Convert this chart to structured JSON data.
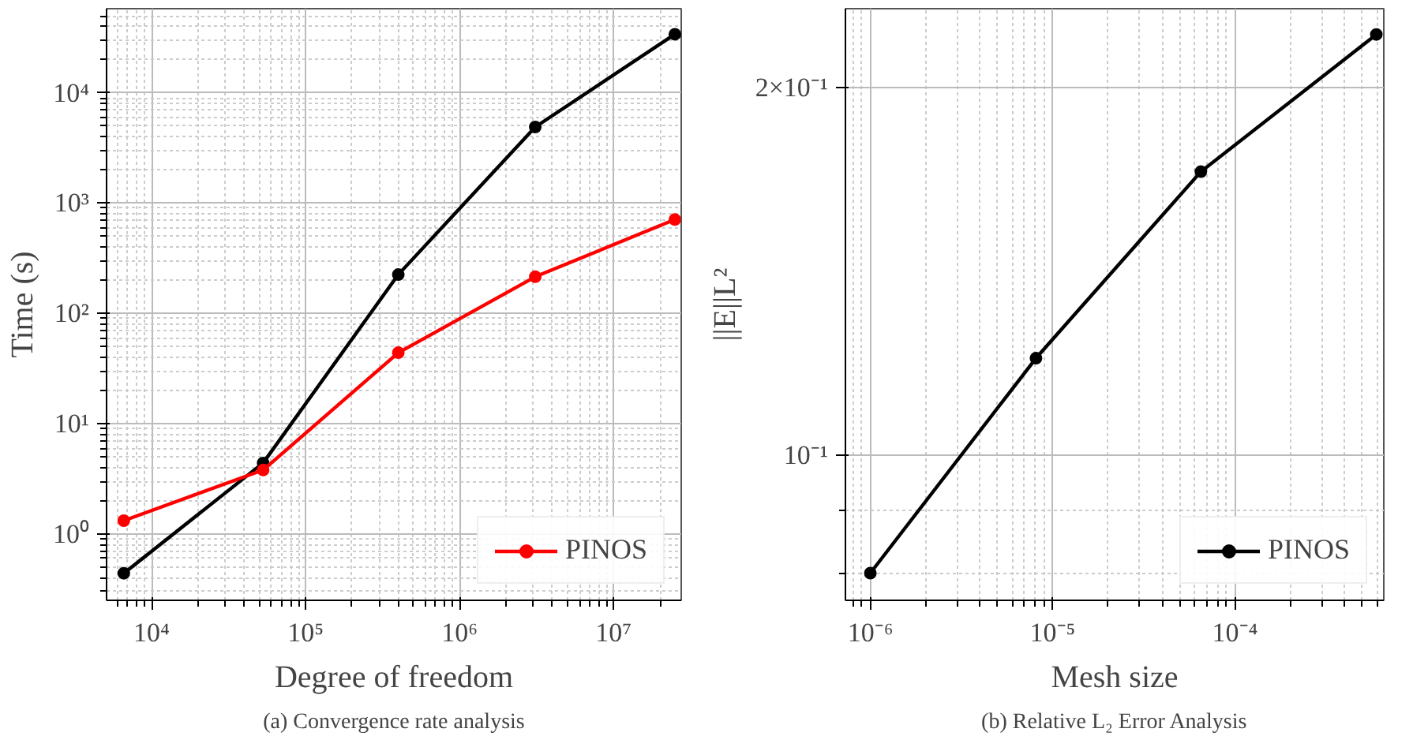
{
  "chart_data": [
    {
      "type": "line",
      "title": "(a) Convergence rate analysis",
      "xlabel": "Degree of freedom",
      "ylabel": "Time (s)",
      "x": [
        6600,
        53000,
        400000,
        3100000,
        25000000
      ],
      "series": [
        {
          "color": "#000000",
          "values": [
            0.44,
            4.4,
            225,
            4900,
            34000
          ]
        },
        {
          "name": "PINOS",
          "color": "#ff0000",
          "values": [
            1.32,
            3.8,
            44,
            215,
            710
          ]
        }
      ],
      "log": "xy",
      "xlim": [
        5100,
        27500000
      ],
      "ylim": [
        0.25,
        58000
      ],
      "xticks": [
        {
          "value": 10000,
          "label": "10⁴"
        },
        {
          "value": 100000,
          "label": "10⁵"
        },
        {
          "value": 1000000,
          "label": "10⁶"
        },
        {
          "value": 10000000,
          "label": "10⁷"
        }
      ],
      "yticks": [
        {
          "value": 1,
          "label": "10⁰"
        },
        {
          "value": 10,
          "label": "10¹"
        },
        {
          "value": 100,
          "label": "10²"
        },
        {
          "value": 1000,
          "label": "10³"
        },
        {
          "value": 10000,
          "label": "10⁴"
        }
      ],
      "grid": true,
      "legend": "bottom right",
      "marker": "circle",
      "line_style": "solid"
    },
    {
      "type": "line",
      "title": "(b) Relative L₂ Error Analysis",
      "xlabel": "Mesh size",
      "ylabel": "||E||L²",
      "x": [
        1e-06,
        8.1e-06,
        6.5e-05,
        0.000596
      ],
      "series": [
        {
          "name": "PINOS",
          "color": "#000000",
          "values": [
            0.08,
            0.12,
            0.1706,
            0.221
          ]
        }
      ],
      "log": "xy",
      "xlim": [
        7.3e-07,
        0.000655
      ],
      "ylim": [
        0.076,
        0.232
      ],
      "xticks": [
        {
          "value": 1e-06,
          "label": "10⁻⁶"
        },
        {
          "value": 1e-05,
          "label": "10⁻⁵"
        },
        {
          "value": 0.0001,
          "label": "10⁻⁴"
        }
      ],
      "yticks": [
        {
          "value": 0.1,
          "label": "10⁻¹"
        },
        {
          "value": 0.2,
          "label": "2×10⁻¹"
        }
      ],
      "grid": true,
      "legend": "bottom right",
      "marker": "circle",
      "line_style": "solid"
    }
  ]
}
